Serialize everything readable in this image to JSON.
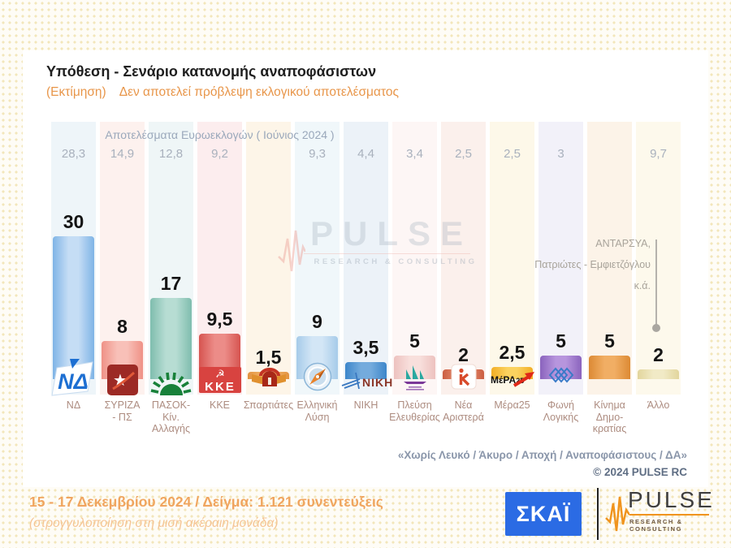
{
  "title": "Υπόθεση - Σενάριο κατανομής αναποφάσιστων",
  "subtitle": {
    "prefix": "(Εκτίμηση)",
    "text": "Δεν αποτελεί πρόβλεψη εκλογικού αποτελέσματος"
  },
  "chart_data": {
    "type": "bar",
    "title": "Υπόθεση - Σενάριο κατανομής αναποφάσιστων",
    "subtitle": "(Εκτίμηση) Δεν αποτελεί πρόβλεψη εκλογικού αποτελέσματος",
    "categories": [
      "ΝΔ",
      "ΣΥΡΙΖΑ - ΠΣ",
      "ΠΑΣΟΚ-Κίν. Αλλαγής",
      "ΚΚΕ",
      "Σπαρτιάτες",
      "Ελληνική Λύση",
      "ΝΙΚΗ",
      "Πλεύση Ελευθερίας",
      "Νέα Αριστερά",
      "Μέρα25",
      "Φωνή Λογικής",
      "Κίνημα Δημοκρατίας",
      "Άλλο"
    ],
    "series": [
      {
        "name": "Εκτίμηση (15 - 17 Δεκεμβρίου 2024)",
        "values": [
          30,
          8,
          17,
          9.5,
          1.5,
          9,
          3.5,
          5,
          2,
          2.5,
          5,
          5,
          2
        ]
      },
      {
        "name": "Αποτελέσματα Ευρωεκλογών ( Ιούνιος 2024 )",
        "values": [
          28.3,
          14.9,
          12.8,
          9.2,
          null,
          9.3,
          4.4,
          3.4,
          2.5,
          2.5,
          3,
          null,
          9.7
        ]
      }
    ],
    "reference_row_label": "Αποτελέσματα Ευρωεκλογών ( Ιούνιος 2024 )",
    "ylim": [
      0,
      32
    ],
    "grid": false,
    "legend": false,
    "annotation_text": "ΑΝΤΑΡΣΥΑ, Πατριώτες - Εμφιετζόγλου κ.ά."
  },
  "parties": [
    {
      "name": "ΝΔ",
      "label_lines": [
        "ΝΔ"
      ],
      "value_display": "30",
      "euro_display": "28,3",
      "bar_edge": "#7fb4e6",
      "bar_mid": "#c5ddf5",
      "tint": "#eef5f9",
      "logo": "nd-logo"
    },
    {
      "name": "ΣΥΡΙΖΑ - ΠΣ",
      "label_lines": [
        "ΣΥΡΙΖΑ",
        "- ΠΣ"
      ],
      "value_display": "8",
      "euro_display": "14,9",
      "bar_edge": "#ef9186",
      "bar_mid": "#f8c0b8",
      "tint": "#fdf1ee",
      "logo": "syriza-logo"
    },
    {
      "name": "ΠΑΣΟΚ-Κίν. Αλλαγής",
      "label_lines": [
        "ΠΑΣΟΚ-Κίν.",
        "Αλλαγής"
      ],
      "value_display": "17",
      "euro_display": "12,8",
      "bar_edge": "#7fbdae",
      "bar_mid": "#b7ddd3",
      "tint": "#eff6f7",
      "logo": "pasok-logo"
    },
    {
      "name": "ΚΚΕ",
      "label_lines": [
        "ΚΚΕ"
      ],
      "value_display": "9,5",
      "euro_display": "9,2",
      "bar_edge": "#d65450",
      "bar_mid": "#ec8c88",
      "tint": "#fcedee",
      "logo": "kke-logo"
    },
    {
      "name": "Σπαρτιάτες",
      "label_lines": [
        "Σπαρτιάτες"
      ],
      "value_display": "1,5",
      "euro_display": "",
      "bar_edge": "#e29240",
      "bar_mid": "#f2b568",
      "tint": "#fdf5e8",
      "logo": "spartiates-logo"
    },
    {
      "name": "Ελληνική Λύση",
      "label_lines": [
        "Ελληνική",
        "Λύση"
      ],
      "value_display": "9",
      "euro_display": "9,3",
      "bar_edge": "#a6cbe9",
      "bar_mid": "#d3e6f6",
      "tint": "#f0f7fa",
      "logo": "elliniki-lysi-logo"
    },
    {
      "name": "ΝΙΚΗ",
      "label_lines": [
        "ΝΙΚΗ"
      ],
      "value_display": "3,5",
      "euro_display": "4,4",
      "bar_edge": "#3d86ca",
      "bar_mid": "#74abdd",
      "tint": "#ecf2f8",
      "logo": "niki-logo"
    },
    {
      "name": "Πλεύση Ελευθερίας",
      "label_lines": [
        "Πλεύση",
        "Ελευθερίας"
      ],
      "value_display": "5",
      "euro_display": "3,4",
      "bar_edge": "#edc2bf",
      "bar_mid": "#f8dfdc",
      "tint": "#fdf6f5",
      "logo": "plefsi-logo"
    },
    {
      "name": "Νέα Αριστερά",
      "label_lines": [
        "Νέα",
        "Αριστερά"
      ],
      "value_display": "2",
      "euro_display": "2,5",
      "bar_edge": "#cb5e42",
      "bar_mid": "#e68f70",
      "tint": "#fbf0ec",
      "logo": "nea-aristera-logo"
    },
    {
      "name": "Μέρα25",
      "label_lines": [
        "Μέρα25"
      ],
      "value_display": "2,5",
      "euro_display": "2,5",
      "bar_edge": "#f2ad24",
      "bar_mid": "#fbd25f",
      "tint": "#fdf8e9",
      "logo": "mera25-logo"
    },
    {
      "name": "Φωνή Λογικής",
      "label_lines": [
        "Φωνή",
        "Λογικής"
      ],
      "value_display": "5",
      "euro_display": "3",
      "bar_edge": "#8a63bd",
      "bar_mid": "#b795dd",
      "tint": "#f2f1f9",
      "logo": "foni-logikis-logo"
    },
    {
      "name": "Κίνημα Δημοκρατίας",
      "label_lines": [
        "Κίνημα",
        "Δημο-",
        "κρατίας"
      ],
      "value_display": "5",
      "euro_display": "",
      "bar_edge": "#dc8a34",
      "bar_mid": "#f1ae64",
      "tint": "#fcf3e8",
      "logo": null
    },
    {
      "name": "Άλλο",
      "label_lines": [
        "Άλλο"
      ],
      "value_display": "2",
      "euro_display": "9,7",
      "bar_edge": "#e2d59c",
      "bar_mid": "#f1eac6",
      "tint": "#fdf9ec",
      "logo": null
    }
  ],
  "euro_header": "Αποτελέσματα Ευρωεκλογών  ( Ιούνιος 2024 )",
  "annotation": {
    "lines": [
      "ΑΝΤΑΡΣΥΑ,",
      "Πατριώτες - Εμφιετζόγλου",
      "κ.ά."
    ]
  },
  "watermark": {
    "text": "PULSE",
    "subtext": "RESEARCH & CONSULTING"
  },
  "footnotes": {
    "quote": "«Χωρίς Λευκό / Άκυρο / Αποχή / Αναποφάσιστους / ΔΑ»",
    "copyright": "© 2024  PULSE RC"
  },
  "footer": {
    "line1": "15 - 17 Δεκεμβρίου 2024 / Δείγμα: 1.121 συνεντεύξεις",
    "line2": "(στρογγυλοποίηση στη μισή ακέραιη μονάδα)"
  },
  "logos": {
    "skai": "ΣΚΑΪ",
    "pulse": "PULSE",
    "pulse_subtext": "RESEARCH & CONSULTING"
  },
  "colors": {
    "accent_orange": "#e8964a",
    "footer_orange": "#f0a55f",
    "header_gray": "#9aa8bb",
    "skai_blue": "#2b6be4",
    "pulse_orange": "#f0941e",
    "value_black": "#141414"
  }
}
